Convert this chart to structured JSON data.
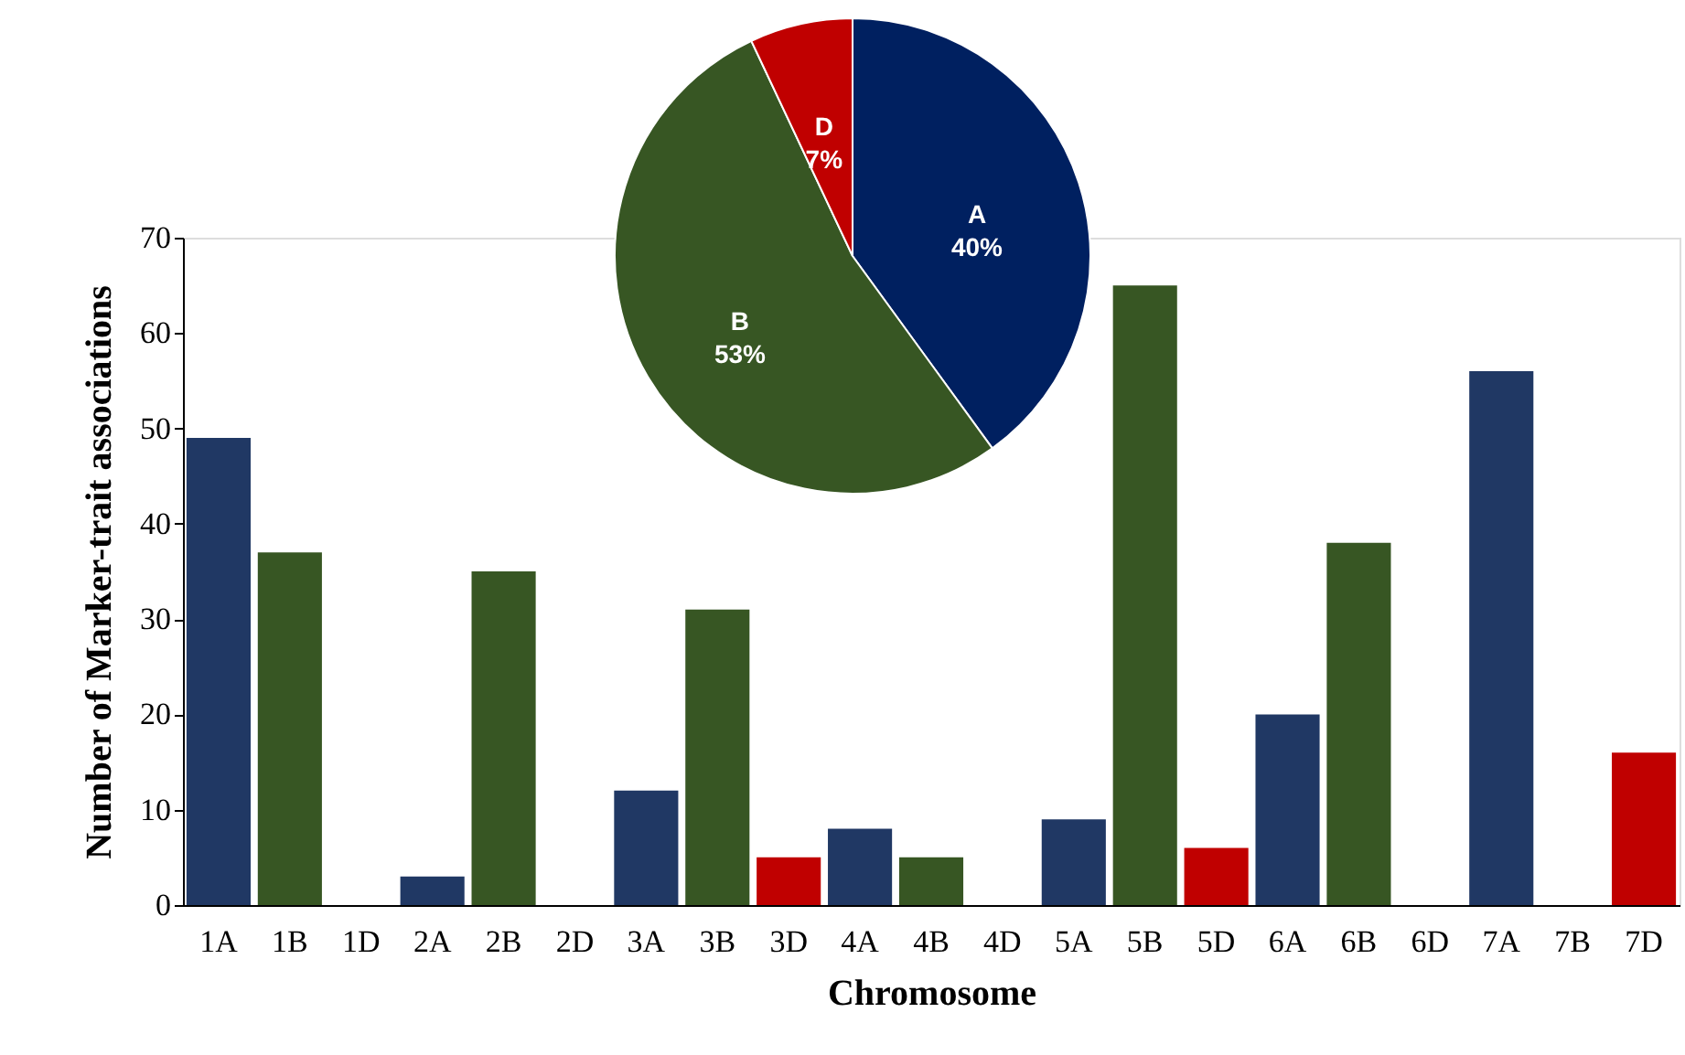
{
  "chart_data": [
    {
      "type": "bar",
      "xlabel": "Chromosome",
      "ylabel": "Number of Marker-trait associations",
      "categories": [
        "1A",
        "1B",
        "1D",
        "2A",
        "2B",
        "2D",
        "3A",
        "3B",
        "3D",
        "4A",
        "4B",
        "4D",
        "5A",
        "5B",
        "5D",
        "6A",
        "6B",
        "6D",
        "7A",
        "7B",
        "7D"
      ],
      "values": [
        49,
        37,
        0,
        3,
        35,
        0,
        12,
        31,
        5,
        8,
        5,
        0,
        9,
        65,
        6,
        20,
        38,
        0,
        56,
        0,
        16
      ],
      "colors": [
        "#203864",
        "#375623",
        "#c00000",
        "#203864",
        "#375623",
        "#c00000",
        "#203864",
        "#375623",
        "#c00000",
        "#203864",
        "#375623",
        "#c00000",
        "#203864",
        "#375623",
        "#c00000",
        "#203864",
        "#375623",
        "#c00000",
        "#203864",
        "#375623",
        "#c00000"
      ],
      "ylim": [
        0,
        70
      ],
      "yticks": [
        0,
        10,
        20,
        30,
        40,
        50,
        60,
        70
      ],
      "grid": false
    },
    {
      "type": "pie",
      "categories": [
        "A",
        "B",
        "D"
      ],
      "values": [
        40,
        53,
        7
      ],
      "colors": [
        "#002060",
        "#375623",
        "#c00000"
      ],
      "value_labels": [
        "40%",
        "53%",
        "7%"
      ]
    }
  ]
}
